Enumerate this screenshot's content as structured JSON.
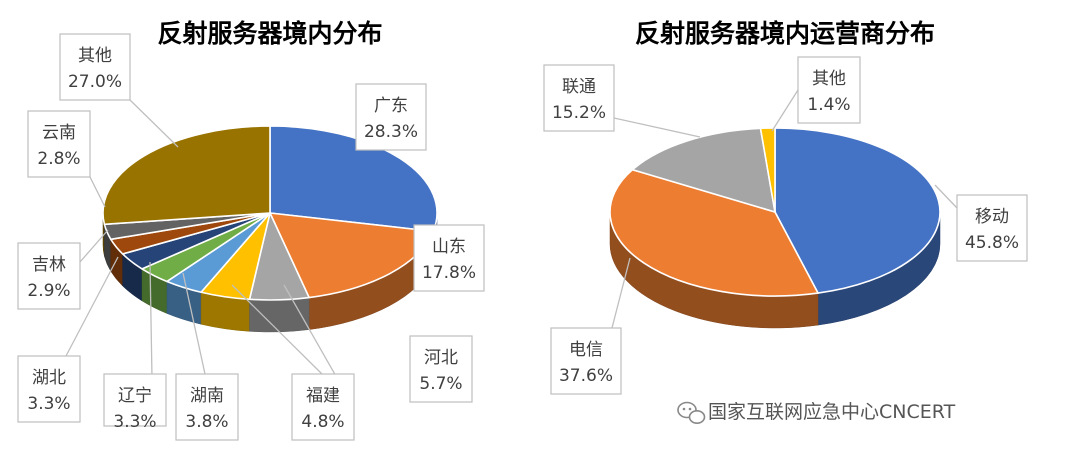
{
  "chart_data": [
    {
      "type": "pie",
      "title": "反射服务器境内分布",
      "slices": [
        {
          "label": "广东",
          "value": 28.3,
          "value_label": "28.3%",
          "color": "#4472C4"
        },
        {
          "label": "山东",
          "value": 17.8,
          "value_label": "17.8%",
          "color": "#ED7D31"
        },
        {
          "label": "河北",
          "value": 5.7,
          "value_label": "5.7%",
          "color": "#A5A5A5"
        },
        {
          "label": "福建",
          "value": 4.8,
          "value_label": "4.8%",
          "color": "#FFC000"
        },
        {
          "label": "湖南",
          "value": 3.8,
          "value_label": "3.8%",
          "color": "#5B9BD5"
        },
        {
          "label": "辽宁",
          "value": 3.3,
          "value_label": "3.3%",
          "color": "#70AD47"
        },
        {
          "label": "湖北",
          "value": 3.3,
          "value_label": "3.3%",
          "color": "#264478"
        },
        {
          "label": "吉林",
          "value": 2.9,
          "value_label": "2.9%",
          "color": "#9E480E"
        },
        {
          "label": "云南",
          "value": 2.8,
          "value_label": "2.8%",
          "color": "#636363"
        },
        {
          "label": "其他",
          "value": 27.0,
          "value_label": "27.0%",
          "color": "#997300"
        }
      ]
    },
    {
      "type": "pie",
      "title": "反射服务器境内运营商分布",
      "slices": [
        {
          "label": "移动",
          "value": 45.8,
          "value_label": "45.8%",
          "color": "#4472C4"
        },
        {
          "label": "电信",
          "value": 37.6,
          "value_label": "37.6%",
          "color": "#ED7D31"
        },
        {
          "label": "联通",
          "value": 15.2,
          "value_label": "15.2%",
          "color": "#A5A5A5"
        },
        {
          "label": "其他",
          "value": 1.4,
          "value_label": "1.4%",
          "color": "#FFC000"
        }
      ]
    }
  ],
  "watermark": {
    "icon": "wechat-icon",
    "text": "国家互联网应急中心CNCERT"
  }
}
